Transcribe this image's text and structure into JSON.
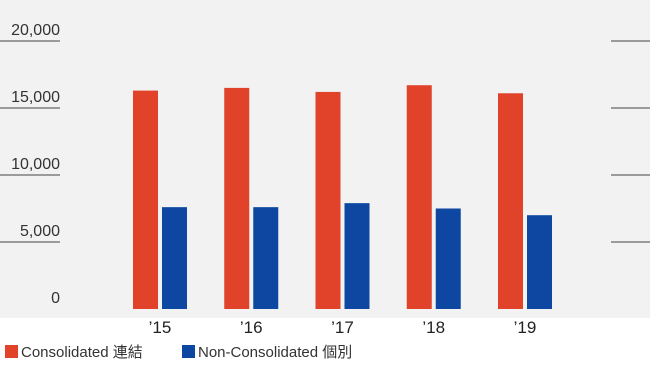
{
  "chart_data": {
    "type": "bar",
    "title": "",
    "xlabel": "",
    "ylabel": "",
    "categories": [
      "’15",
      "’16",
      "’17",
      "’18",
      "’19"
    ],
    "ylim": [
      0,
      20000
    ],
    "yticks": [
      "0",
      "5,000",
      "10,000",
      "15,000",
      "20,000"
    ],
    "grid": false,
    "legend_position": "bottom-left",
    "series": [
      {
        "name": "Consolidated 連結",
        "color": "#e0432a",
        "values": [
          16300,
          16500,
          16200,
          16700,
          16100
        ]
      },
      {
        "name": "Non-Consolidated 個別",
        "color": "#0d47a1",
        "values": [
          7600,
          7600,
          7900,
          7500,
          7000
        ]
      }
    ]
  }
}
